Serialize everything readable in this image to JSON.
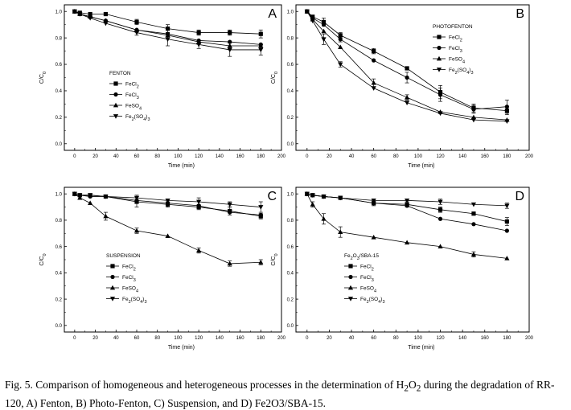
{
  "chart_data": [
    {
      "type": "line",
      "panel_label": "A",
      "legend_title": "FENTON",
      "legend_position": "bottom-left",
      "xlabel": "Time  (min)",
      "ylabel": "C/C",
      "ylabel_sub": "0",
      "xlim": [
        -10,
        200
      ],
      "ylim": [
        -0.05,
        1.05
      ],
      "xticks": [
        "0",
        "20",
        "40",
        "60",
        "80",
        "100",
        "120",
        "140",
        "160",
        "180",
        "200"
      ],
      "yticks": [
        "0.0",
        "0.2",
        "0.4",
        "0.6",
        "0.8",
        "1.0"
      ],
      "x": [
        0,
        5,
        15,
        30,
        60,
        90,
        120,
        150,
        180
      ],
      "series": [
        {
          "name": "FeCl",
          "sub": "2",
          "marker": "square",
          "values": [
            1.0,
            0.99,
            0.98,
            0.98,
            0.92,
            0.87,
            0.84,
            0.84,
            0.83
          ],
          "errors": [
            0,
            0,
            0,
            0,
            0.02,
            0.03,
            0.02,
            0.02,
            0.03
          ]
        },
        {
          "name": "FeCl",
          "sub": "3",
          "marker": "circle",
          "values": [
            1.0,
            0.98,
            0.96,
            0.93,
            0.86,
            0.83,
            0.78,
            0.77,
            0.75
          ],
          "errors": [
            0,
            0,
            0,
            0,
            0,
            0,
            0,
            0,
            0
          ]
        },
        {
          "name": "FeSO",
          "sub": "4",
          "marker": "triangle-up",
          "values": [
            1.0,
            0.98,
            0.96,
            0.93,
            0.86,
            0.82,
            0.77,
            0.74,
            0.74
          ],
          "errors": [
            0,
            0,
            0,
            0,
            0,
            0,
            0,
            0,
            0
          ]
        },
        {
          "name": "Fe",
          "sub": "2",
          "name2": "(SO",
          "sub2": "4",
          "name3": ")",
          "sub3": "3",
          "marker": "triangle-down",
          "values": [
            1.0,
            0.98,
            0.95,
            0.91,
            0.84,
            0.79,
            0.75,
            0.71,
            0.71
          ],
          "errors": [
            0,
            0,
            0,
            0,
            0.02,
            0.05,
            0.03,
            0.05,
            0.04
          ]
        }
      ]
    },
    {
      "type": "line",
      "panel_label": "B",
      "legend_title": "PHOTOFENTON",
      "legend_position": "top-right",
      "xlabel": "Time  (min)",
      "ylabel": "C/C",
      "ylabel_sub": "0",
      "xlim": [
        -10,
        200
      ],
      "ylim": [
        -0.05,
        1.05
      ],
      "xticks": [
        "0",
        "20",
        "40",
        "60",
        "80",
        "100",
        "120",
        "140",
        "160",
        "180",
        "200"
      ],
      "yticks": [
        "0.0",
        "0.2",
        "0.4",
        "0.6",
        "0.8",
        "1.0"
      ],
      "x": [
        0,
        5,
        15,
        30,
        60,
        90,
        120,
        150,
        180
      ],
      "series": [
        {
          "name": "FeCl",
          "sub": "2",
          "marker": "square",
          "values": [
            1.0,
            0.96,
            0.92,
            0.82,
            0.7,
            0.57,
            0.39,
            0.27,
            0.25
          ],
          "errors": [
            0,
            0,
            0.03,
            0.02,
            0.02,
            0,
            0.05,
            0.03,
            0.03
          ]
        },
        {
          "name": "FeCl",
          "sub": "3",
          "marker": "circle",
          "values": [
            1.0,
            0.95,
            0.9,
            0.79,
            0.63,
            0.5,
            0.37,
            0.26,
            0.28
          ],
          "errors": [
            0,
            0,
            0,
            0.02,
            0,
            0.04,
            0.05,
            0.03,
            0.05
          ]
        },
        {
          "name": "FeSO",
          "sub": "4",
          "marker": "triangle-up",
          "values": [
            1.0,
            0.94,
            0.85,
            0.73,
            0.46,
            0.35,
            0.24,
            0.2,
            0.18
          ],
          "errors": [
            0,
            0,
            0,
            0,
            0.03,
            0.02,
            0,
            0,
            0
          ]
        },
        {
          "name": "Fe",
          "sub": "2",
          "name2": "(SO",
          "sub2": "4",
          "name3": ")",
          "sub3": "3",
          "marker": "triangle-down",
          "values": [
            1.0,
            0.93,
            0.79,
            0.6,
            0.42,
            0.31,
            0.23,
            0.18,
            0.17
          ],
          "errors": [
            0,
            0,
            0.04,
            0.02,
            0,
            0,
            0,
            0,
            0
          ]
        }
      ]
    },
    {
      "type": "line",
      "panel_label": "C",
      "legend_title": "SUSPENSION",
      "legend_position": "bottom-left",
      "xlabel": "Time  (min)",
      "ylabel": "C/C",
      "ylabel_sub": "0",
      "xlim": [
        -10,
        200
      ],
      "ylim": [
        -0.05,
        1.05
      ],
      "xticks": [
        "0",
        "20",
        "40",
        "60",
        "80",
        "100",
        "120",
        "140",
        "160",
        "180",
        "200"
      ],
      "yticks": [
        "0.0",
        "0.2",
        "0.4",
        "0.6",
        "0.8",
        "1.0"
      ],
      "x": [
        0,
        5,
        15,
        30,
        60,
        90,
        120,
        150,
        180
      ],
      "series": [
        {
          "name": "FeCl",
          "sub": "2",
          "marker": "square",
          "values": [
            1.0,
            0.99,
            0.99,
            0.98,
            0.94,
            0.92,
            0.9,
            0.87,
            0.83
          ],
          "errors": [
            0,
            0,
            0,
            0,
            0.04,
            0.02,
            0.02,
            0.03,
            0.02
          ]
        },
        {
          "name": "FeCl",
          "sub": "3",
          "marker": "circle",
          "values": [
            1.0,
            0.99,
            0.98,
            0.98,
            0.95,
            0.93,
            0.91,
            0.86,
            0.84
          ],
          "errors": [
            0,
            0,
            0,
            0,
            0,
            0,
            0,
            0,
            0
          ]
        },
        {
          "name": "FeSO",
          "sub": "4",
          "marker": "triangle-up",
          "values": [
            1.0,
            0.97,
            0.93,
            0.83,
            0.72,
            0.68,
            0.57,
            0.47,
            0.48
          ],
          "errors": [
            0,
            0,
            0,
            0.03,
            0.02,
            0,
            0.02,
            0.02,
            0.02
          ]
        },
        {
          "name": "Fe",
          "sub": "2",
          "name2": "(SO",
          "sub2": "4",
          "name3": ")",
          "sub3": "3",
          "marker": "triangle-down",
          "values": [
            1.0,
            0.99,
            0.99,
            0.98,
            0.97,
            0.95,
            0.94,
            0.92,
            0.9
          ],
          "errors": [
            0,
            0,
            0,
            0,
            0.02,
            0,
            0.03,
            0.02,
            0.04
          ]
        }
      ]
    },
    {
      "type": "line",
      "panel_label": "D",
      "legend_title": "Fe",
      "legend_title_sub": "2",
      "legend_title_mid": "O",
      "legend_title_sub2": "3",
      "legend_title_end": "/SBA-15",
      "legend_position": "bottom-left",
      "xlabel": "Time  (min)",
      "ylabel": "C/C",
      "ylabel_sub": "0",
      "xlim": [
        -10,
        200
      ],
      "ylim": [
        -0.05,
        1.05
      ],
      "xticks": [
        "0",
        "20",
        "40",
        "60",
        "80",
        "100",
        "120",
        "140",
        "160",
        "180",
        "200"
      ],
      "yticks": [
        "0.0",
        "0.2",
        "0.4",
        "0.6",
        "0.8",
        "1.0"
      ],
      "x": [
        0,
        5,
        15,
        30,
        60,
        90,
        120,
        150,
        180
      ],
      "series": [
        {
          "name": "FeCl",
          "sub": "2",
          "marker": "square",
          "values": [
            1.0,
            0.99,
            0.98,
            0.97,
            0.93,
            0.92,
            0.88,
            0.85,
            0.79
          ],
          "errors": [
            0,
            0,
            0,
            0,
            0.02,
            0.02,
            0.02,
            0,
            0.03
          ]
        },
        {
          "name": "FeCl",
          "sub": "3",
          "marker": "circle",
          "values": [
            1.0,
            0.99,
            0.98,
            0.97,
            0.93,
            0.91,
            0.81,
            0.77,
            0.72
          ],
          "errors": [
            0,
            0,
            0,
            0,
            0,
            0,
            0,
            0,
            0
          ]
        },
        {
          "name": "FeSO",
          "sub": "4",
          "marker": "triangle-up",
          "values": [
            1.0,
            0.92,
            0.81,
            0.71,
            0.67,
            0.63,
            0.6,
            0.54,
            0.51
          ],
          "errors": [
            0,
            0.02,
            0.04,
            0.04,
            0,
            0,
            0,
            0.02,
            0
          ]
        },
        {
          "name": "Fe",
          "sub": "2",
          "name2": "(SO",
          "sub2": "4",
          "name3": ")",
          "sub3": "3",
          "marker": "triangle-down",
          "values": [
            1.0,
            0.99,
            0.98,
            0.97,
            0.95,
            0.95,
            0.94,
            0.92,
            0.91
          ],
          "errors": [
            0,
            0,
            0,
            0,
            0,
            0,
            0.02,
            0,
            0.02
          ]
        }
      ]
    }
  ],
  "caption": {
    "part1": "Fig. 5.   Comparison of homogeneous and heterogeneous processes in the determination of H",
    "sub1": "2",
    "part2": "O",
    "sub2": "2",
    "part3": " during the degradation of RR-120, A) Fenton, B) Photo-Fenton, C) Suspension, and D) Fe2O3/SBA-15."
  }
}
